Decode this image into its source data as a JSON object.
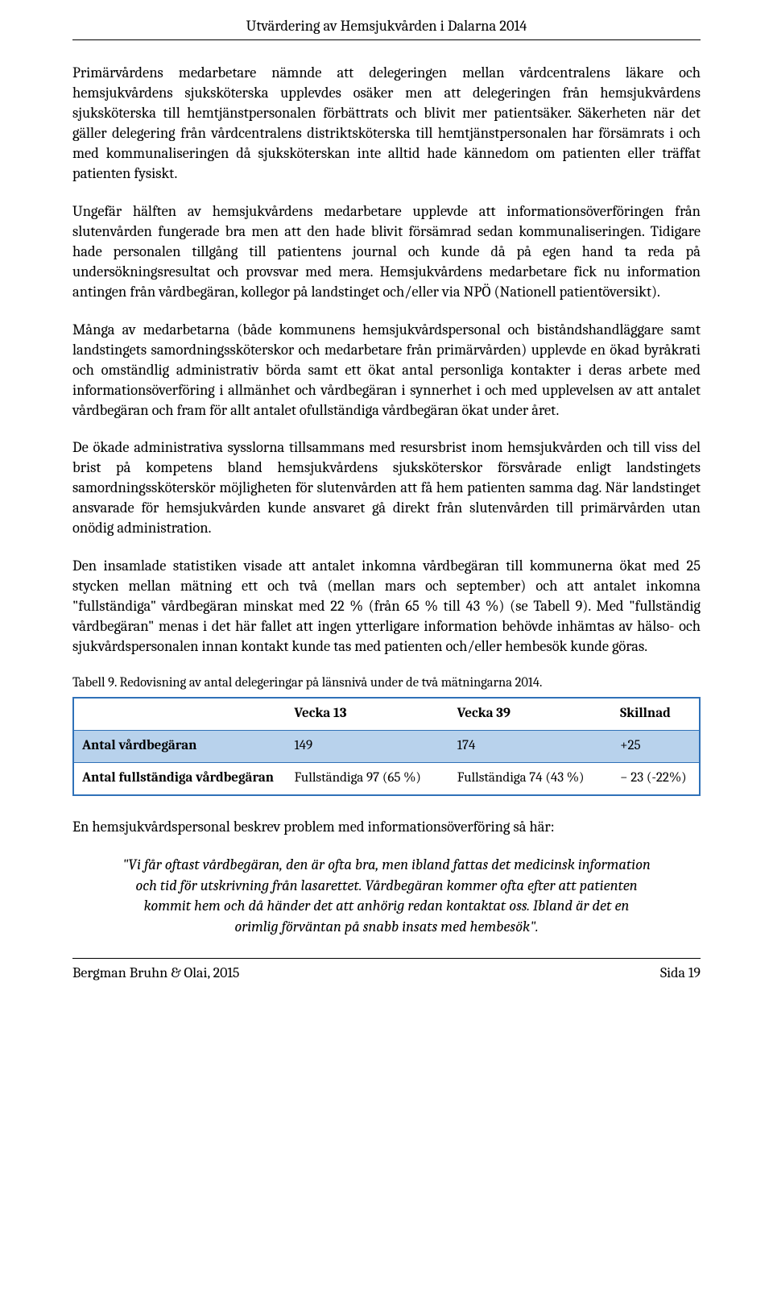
{
  "header": {
    "title": "Utvärdering av Hemsjukvården i Dalarna 2014"
  },
  "paragraphs": {
    "p1": "Primärvårdens medarbetare nämnde att delegeringen mellan vårdcentralens läkare och hemsjukvårdens sjuksköterska upplevdes osäker men att delegeringen från hemsjukvårdens sjuksköterska till hemtjänstpersonalen förbättrats och blivit mer patientsäker. Säkerheten när det gäller delegering från vårdcentralens distriktsköterska till hemtjänstpersonalen har försämrats i och med kommunaliseringen då sjuksköterskan inte alltid hade kännedom om patienten eller träffat patienten fysiskt.",
    "p2": "Ungefär hälften av hemsjukvårdens medarbetare upplevde att informationsöverföringen från slutenvården fungerade bra men att den hade blivit försämrad sedan kommunaliseringen. Tidigare hade personalen tillgång till patientens journal och kunde då på egen hand ta reda på undersökningsresultat och provsvar med mera. Hemsjukvårdens medarbetare fick nu information antingen från vårdbegäran, kollegor på landstinget och/eller via NPÖ (Nationell patientöversikt).",
    "p3": "Många av medarbetarna (både kommunens hemsjukvårdspersonal och biståndshandläggare samt landstingets samordningssköterskor och medarbetare från primärvården) upplevde en ökad byråkrati och omständlig administrativ börda samt ett ökat antal personliga kontakter i deras arbete med informationsöverföring i allmänhet och vårdbegäran i synnerhet i och med upplevelsen av att antalet vårdbegäran och fram för allt antalet ofullständiga vårdbegäran ökat under året.",
    "p4": "De ökade administrativa sysslorna tillsammans med resursbrist inom hemsjukvården och till viss del brist på kompetens bland hemsjukvårdens sjuksköterskor försvårade enligt landstingets samordningssköterskör möjligheten för slutenvården att få hem patienten samma dag. När landstinget ansvarade för hemsjukvården kunde ansvaret gå direkt från slutenvården till primärvården utan onödig administration.",
    "p5": "Den insamlade statistiken visade att antalet inkomna vårdbegäran till kommunerna ökat med 25 stycken mellan mätning ett och två (mellan mars och september) och att antalet inkomna \"fullständiga\" vårdbegäran minskat med 22 % (från 65 % till 43 %) (se Tabell 9). Med \"fullständig vårdbegäran\" menas i det här fallet att ingen ytterligare information behövde inhämtas av hälso- och sjukvårdspersonalen innan kontakt kunde tas med patienten och/eller hembesök kunde göras.",
    "p6": "En hemsjukvårdspersonal beskrev problem med informationsöverföring så här:",
    "quote": "\"Vi får oftast vårdbegäran, den är ofta bra, men ibland fattas det medicinsk information och tid för utskrivning från lasarettet. Vårdbegäran kommer ofta efter att patienten kommit hem och då händer det att anhörig redan kontaktat oss. Ibland är det en orimlig förväntan på snabb insats med hembesök\"."
  },
  "table": {
    "caption": "Tabell 9. Redovisning av antal delegeringar på länsnivå under de två mätningarna 2014.",
    "type": "table",
    "border_color": "#2f71b8",
    "shade_color": "#b8d2ec",
    "background_color": "#ffffff",
    "columns": [
      "",
      "Vecka 13",
      "Vecka 39",
      "Skillnad"
    ],
    "rows": [
      {
        "label": "Antal vårdbegäran",
        "cells": [
          "149",
          "174",
          "+25"
        ],
        "shaded": true
      },
      {
        "label": "Antal fullständiga vårdbegäran",
        "cells": [
          "Fullständiga 97 (65 %)",
          "Fullständiga 74 (43 %)",
          "− 23 (-22%)"
        ],
        "shaded": false
      }
    ]
  },
  "footer": {
    "left": "Bergman Bruhn & Olai, 2015",
    "right": "Sida 19"
  }
}
